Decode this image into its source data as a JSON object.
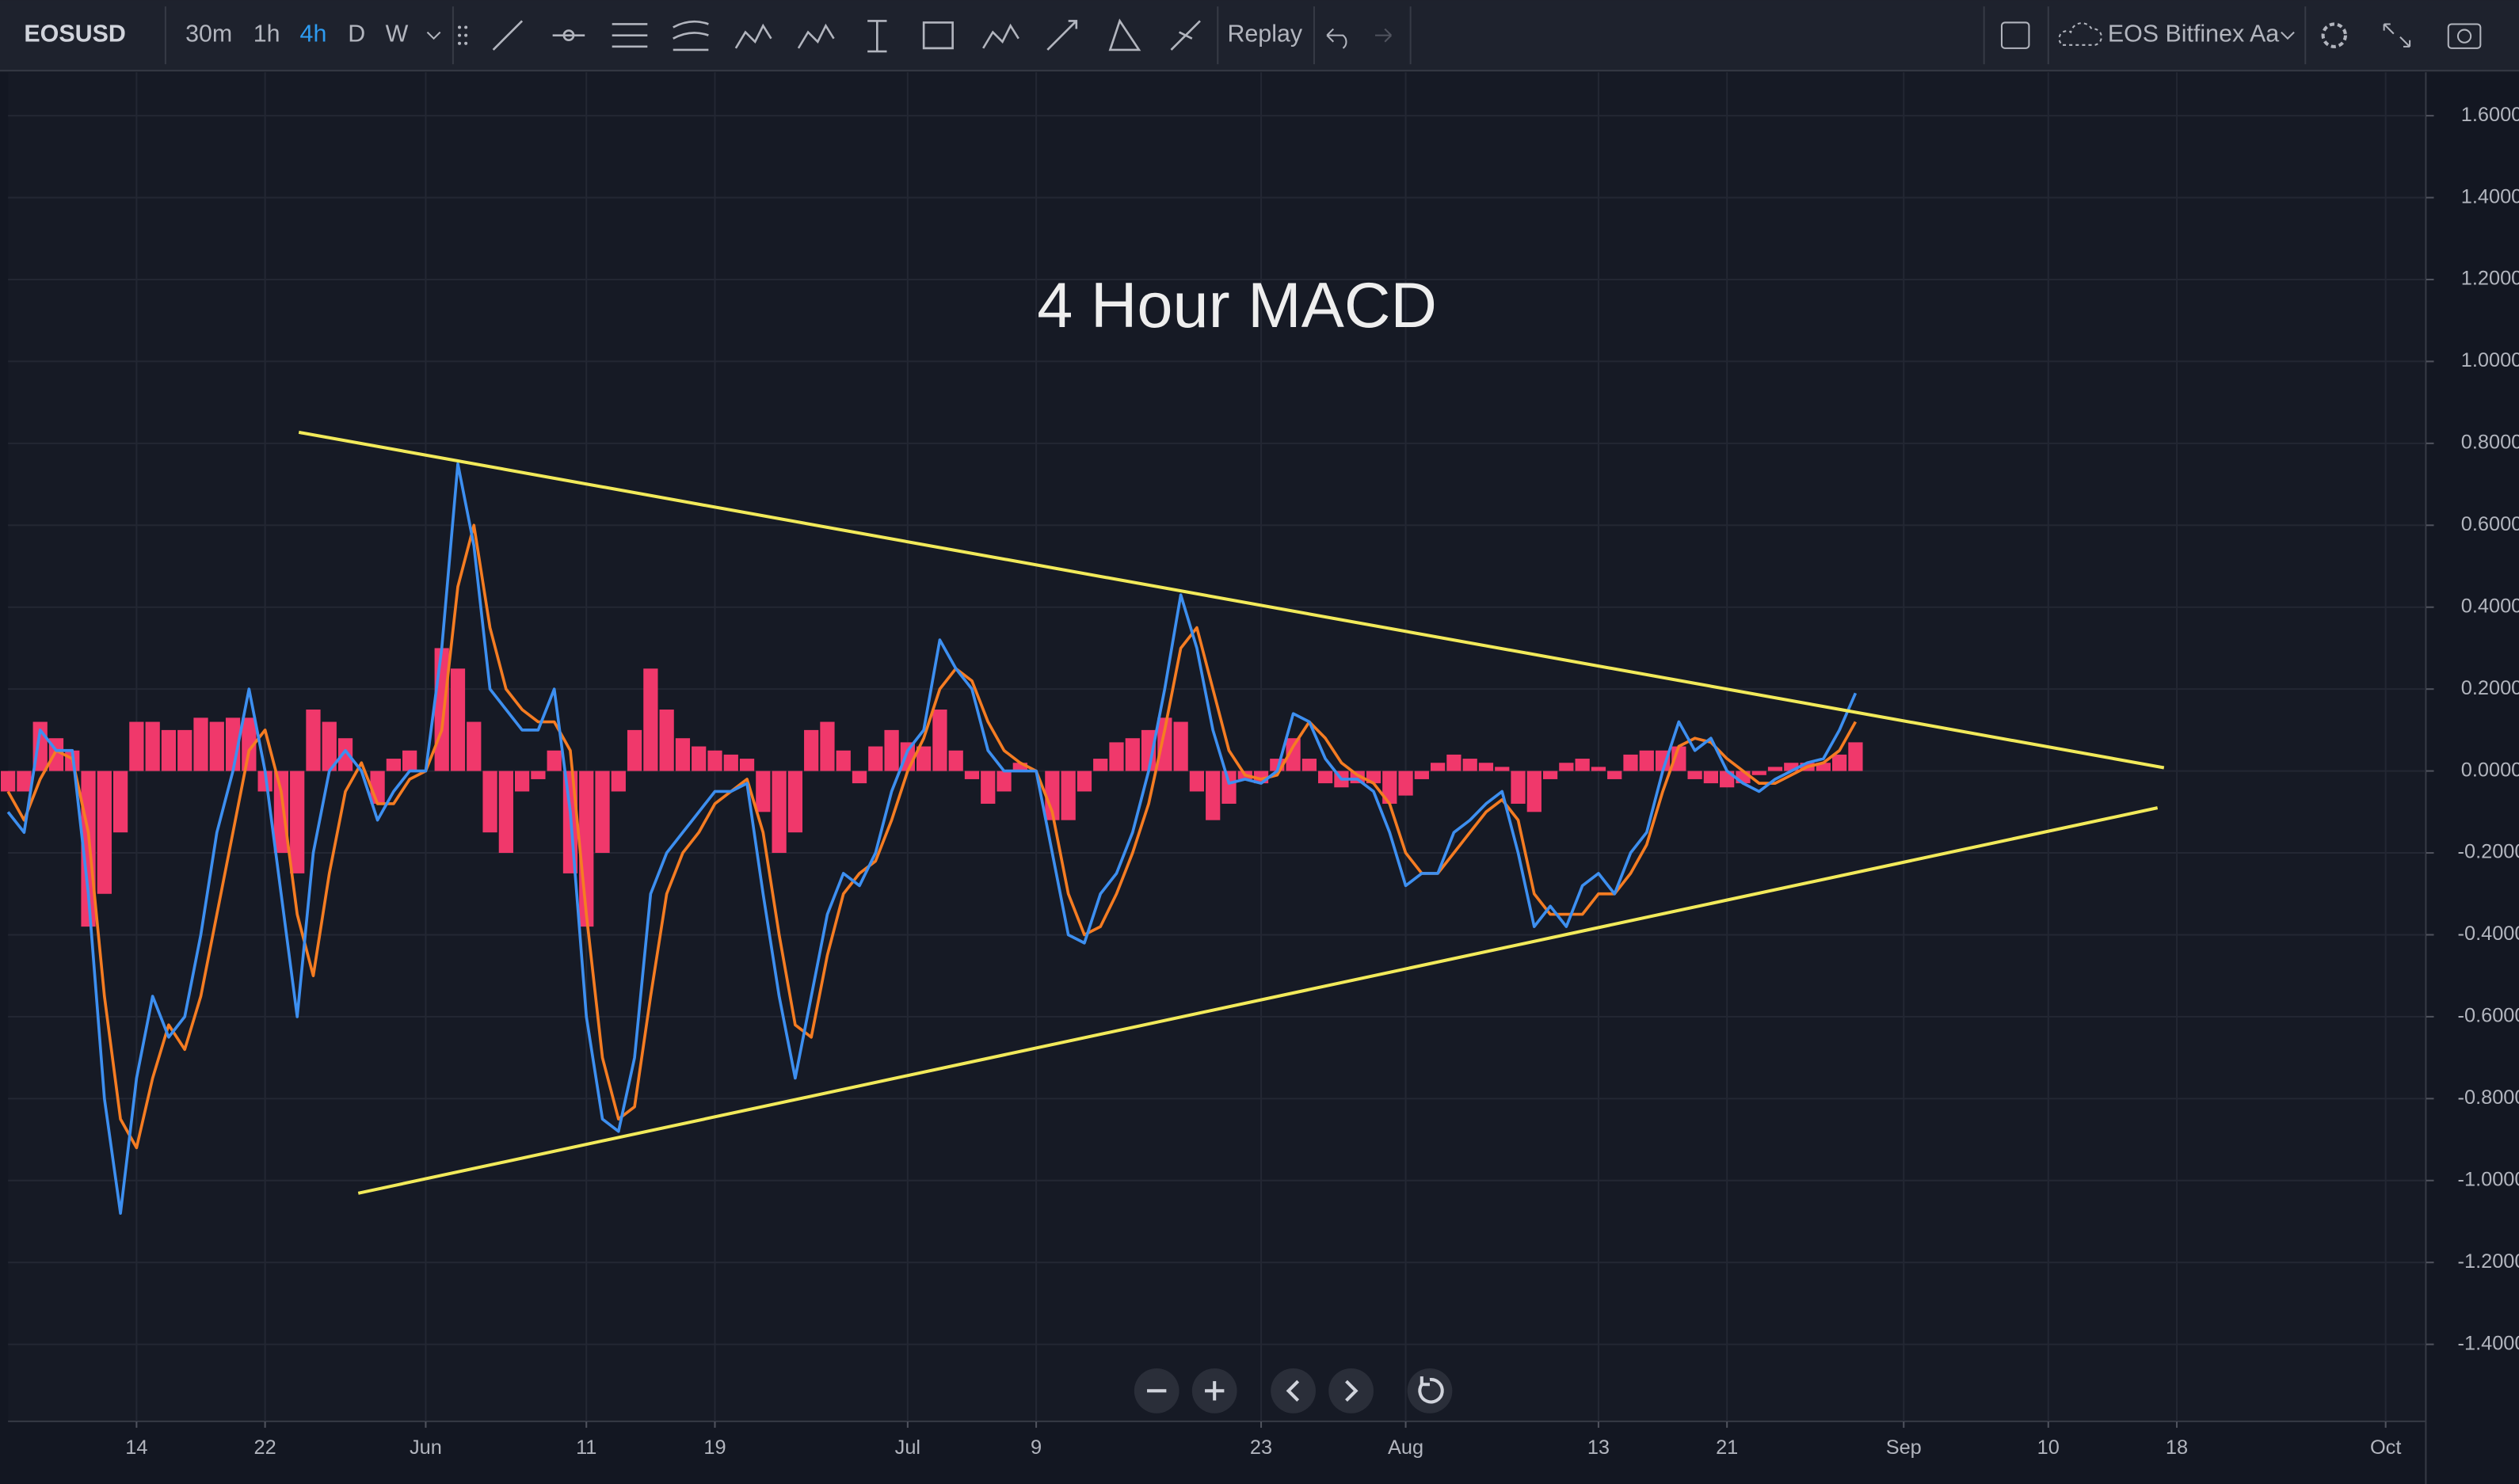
{
  "toolbar": {
    "symbol": "EOSUSD",
    "intervals": [
      "30m",
      "1h",
      "4h",
      "D",
      "W"
    ],
    "active_interval": "4h",
    "replay": "Replay",
    "layout_name": "EOS Bitfinex Aa"
  },
  "chart_data": {
    "type": "line",
    "title": "4 Hour MACD",
    "x": [
      0,
      1,
      2,
      3,
      4,
      5,
      6,
      7,
      8,
      9,
      10,
      11,
      12,
      13,
      14,
      15,
      16,
      17,
      18,
      19,
      20,
      21,
      22,
      23,
      24,
      25,
      26,
      27,
      28,
      29,
      30,
      31,
      32,
      33,
      34,
      35,
      36,
      37,
      38,
      39,
      40,
      41,
      42,
      43,
      44,
      45,
      46,
      47,
      48,
      49,
      50,
      51,
      52,
      53,
      54,
      55,
      56,
      57,
      58,
      59,
      60,
      61,
      62,
      63,
      64,
      65,
      66,
      67,
      68,
      69,
      70,
      71,
      72,
      73,
      74,
      75,
      76,
      77,
      78,
      79,
      80,
      81,
      82,
      83,
      84,
      85,
      86,
      87,
      88,
      89,
      90,
      91,
      92,
      93,
      94,
      95,
      96,
      97,
      98,
      99,
      100,
      101,
      102,
      103,
      104,
      105,
      106,
      107,
      108,
      109,
      110,
      111,
      112,
      113,
      114,
      115
    ],
    "series": [
      {
        "color": "#f0386b",
        "type": "bar",
        "values": [
          -0.05,
          -0.05,
          0.12,
          0.08,
          0.05,
          -0.38,
          -0.3,
          -0.15,
          0.12,
          0.12,
          0.1,
          0.1,
          0.13,
          0.12,
          0.13,
          0.13,
          -0.05,
          -0.2,
          -0.25,
          0.15,
          0.12,
          0.08,
          0,
          -0.08,
          0.03,
          0.05,
          0,
          0.3,
          0.25,
          0.12,
          -0.15,
          -0.2,
          -0.05,
          -0.02,
          0.05,
          -0.25,
          -0.38,
          -0.2,
          -0.05,
          0.1,
          0.25,
          0.15,
          0.08,
          0.06,
          0.05,
          0.04,
          0.03,
          -0.1,
          -0.2,
          -0.15,
          0.1,
          0.12,
          0.05,
          -0.03,
          0.06,
          0.1,
          0.07,
          0.06,
          0.15,
          0.05,
          -0.02,
          -0.08,
          -0.05,
          0.02,
          0,
          -0.12,
          -0.12,
          -0.05,
          0.03,
          0.07,
          0.08,
          0.1,
          0.13,
          0.12,
          -0.05,
          -0.12,
          -0.08,
          -0.02,
          -0.03,
          0.03,
          0.08,
          0.03,
          -0.03,
          -0.04,
          -0.03,
          -0.03,
          -0.08,
          -0.06,
          -0.02,
          0.02,
          0.04,
          0.03,
          0.02,
          0.01,
          -0.08,
          -0.1,
          -0.02,
          0.02,
          0.03,
          0.01,
          -0.02,
          0.04,
          0.05,
          0.05,
          0.06,
          -0.02,
          -0.03,
          -0.04,
          -0.03,
          -0.01,
          0.01,
          0.02,
          0.02,
          0.02,
          0.04,
          0.07
        ]
      },
      {
        "color": "#f57c22",
        "type": "line",
        "values": [
          -0.05,
          -0.12,
          -0.02,
          0.05,
          0.03,
          -0.15,
          -0.55,
          -0.85,
          -0.92,
          -0.75,
          -0.62,
          -0.68,
          -0.55,
          -0.35,
          -0.15,
          0.05,
          0.1,
          -0.05,
          -0.35,
          -0.5,
          -0.25,
          -0.05,
          0.02,
          -0.08,
          -0.08,
          -0.02,
          0,
          0.1,
          0.45,
          0.6,
          0.35,
          0.2,
          0.15,
          0.12,
          0.12,
          0.05,
          -0.35,
          -0.7,
          -0.85,
          -0.82,
          -0.55,
          -0.3,
          -0.2,
          -0.15,
          -0.08,
          -0.05,
          -0.02,
          -0.15,
          -0.4,
          -0.62,
          -0.65,
          -0.45,
          -0.3,
          -0.25,
          -0.22,
          -0.12,
          0,
          0.08,
          0.2,
          0.25,
          0.22,
          0.12,
          0.05,
          0.02,
          0,
          -0.1,
          -0.3,
          -0.4,
          -0.38,
          -0.3,
          -0.2,
          -0.08,
          0.1,
          0.3,
          0.35,
          0.2,
          0.05,
          -0.01,
          -0.02,
          -0.01,
          0.06,
          0.12,
          0.08,
          0.02,
          -0.01,
          -0.03,
          -0.08,
          -0.2,
          -0.25,
          -0.25,
          -0.2,
          -0.15,
          -0.1,
          -0.07,
          -0.12,
          -0.3,
          -0.35,
          -0.35,
          -0.35,
          -0.3,
          -0.3,
          -0.25,
          -0.18,
          -0.05,
          0.06,
          0.08,
          0.07,
          0.03,
          0,
          -0.03,
          -0.03,
          -0.01,
          0.01,
          0.02,
          0.05,
          0.12
        ]
      },
      {
        "color": "#3d8ff0",
        "type": "line",
        "values": [
          -0.1,
          -0.15,
          0.1,
          0.05,
          0.05,
          -0.3,
          -0.8,
          -1.08,
          -0.75,
          -0.55,
          -0.65,
          -0.6,
          -0.4,
          -0.15,
          0,
          0.2,
          0,
          -0.3,
          -0.6,
          -0.2,
          0,
          0.05,
          0,
          -0.12,
          -0.05,
          0,
          0,
          0.3,
          0.75,
          0.55,
          0.2,
          0.15,
          0.1,
          0.1,
          0.2,
          -0.1,
          -0.6,
          -0.85,
          -0.88,
          -0.7,
          -0.3,
          -0.2,
          -0.15,
          -0.1,
          -0.05,
          -0.05,
          -0.03,
          -0.3,
          -0.55,
          -0.75,
          -0.55,
          -0.35,
          -0.25,
          -0.28,
          -0.2,
          -0.05,
          0.05,
          0.1,
          0.32,
          0.25,
          0.2,
          0.05,
          0,
          0,
          0,
          -0.2,
          -0.4,
          -0.42,
          -0.3,
          -0.25,
          -0.15,
          0,
          0.2,
          0.43,
          0.3,
          0.1,
          -0.03,
          -0.02,
          -0.03,
          0,
          0.14,
          0.12,
          0.03,
          -0.02,
          -0.02,
          -0.05,
          -0.15,
          -0.28,
          -0.25,
          -0.25,
          -0.15,
          -0.12,
          -0.08,
          -0.05,
          -0.2,
          -0.38,
          -0.33,
          -0.38,
          -0.28,
          -0.25,
          -0.3,
          -0.2,
          -0.15,
          0,
          0.12,
          0.05,
          0.08,
          0,
          -0.03,
          -0.05,
          -0.02,
          0,
          0.02,
          0.03,
          0.1,
          0.19
        ]
      }
    ],
    "trendlines": [
      {
        "color": "#f2ea5a",
        "x": [
          18.1,
          134.2
        ],
        "values": [
          0.827,
          0.008
        ]
      },
      {
        "color": "#f2ea5a",
        "x": [
          21.8,
          133.8
        ],
        "values": [
          -1.031,
          -0.09
        ]
      }
    ],
    "xlim": [
      0,
      150.5
    ],
    "xticks": [
      {
        "value": 8,
        "label": "14"
      },
      {
        "value": 16,
        "label": "22"
      },
      {
        "value": 26,
        "label": "Jun"
      },
      {
        "value": 36,
        "label": "11"
      },
      {
        "value": 44,
        "label": "19"
      },
      {
        "value": 56,
        "label": "Jul"
      },
      {
        "value": 64,
        "label": "9"
      },
      {
        "value": 78,
        "label": "23"
      },
      {
        "value": 87,
        "label": "Aug"
      },
      {
        "value": 99,
        "label": "13"
      },
      {
        "value": 107,
        "label": "21"
      },
      {
        "value": 118,
        "label": "Sep"
      },
      {
        "value": 127,
        "label": "10"
      },
      {
        "value": 135,
        "label": "18"
      },
      {
        "value": 148,
        "label": "Oct"
      }
    ],
    "ylim": [
      -1.588,
      1.706
    ],
    "yticks": [
      {
        "value": 1.6,
        "label": "1.6000"
      },
      {
        "value": 1.4,
        "label": "1.4000"
      },
      {
        "value": 1.2,
        "label": "1.2000"
      },
      {
        "value": 1,
        "label": "1.0000"
      },
      {
        "value": 0.8,
        "label": "0.8000"
      },
      {
        "value": 0.6,
        "label": "0.6000"
      },
      {
        "value": 0.4,
        "label": "0.4000"
      },
      {
        "value": 0.2,
        "label": "0.2000"
      },
      {
        "value": 0,
        "label": "0.0000"
      },
      {
        "value": -0.2,
        "label": "-0.2000"
      },
      {
        "value": -0.4,
        "label": "-0.4000"
      },
      {
        "value": -0.6,
        "label": "-0.6000"
      },
      {
        "value": -0.8,
        "label": "-0.8000"
      },
      {
        "value": -1,
        "label": "-1.0000"
      },
      {
        "value": -1.2,
        "label": "-1.2000"
      },
      {
        "value": -1.4,
        "label": "-1.4000"
      }
    ],
    "grid": true
  }
}
